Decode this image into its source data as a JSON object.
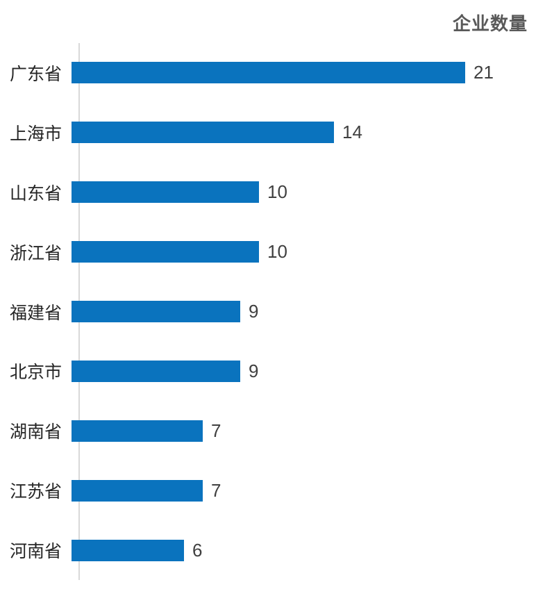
{
  "chart_data": {
    "type": "bar",
    "orientation": "horizontal",
    "title": "企业数量",
    "categories": [
      "广东省",
      "上海市",
      "山东省",
      "浙江省",
      "福建省",
      "北京市",
      "湖南省",
      "江苏省",
      "河南省"
    ],
    "values": [
      21,
      14,
      10,
      10,
      9,
      9,
      7,
      7,
      6
    ],
    "xlim": [
      0,
      24
    ],
    "grid": false,
    "legend": false,
    "data_labels": "outside-end",
    "colors": {
      "bar": "#0a73be",
      "axis_line": "#d9d9d9",
      "value_label": "#404040",
      "category_label": "#262626",
      "title": "#595959",
      "background": "#ffffff"
    }
  }
}
